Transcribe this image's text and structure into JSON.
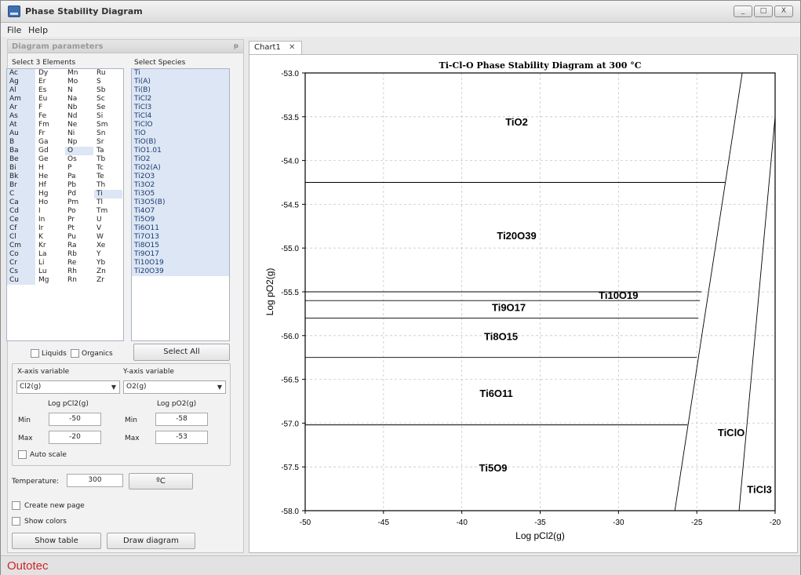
{
  "window": {
    "title": "Phase Stability Diagram",
    "min": "_",
    "max": "□",
    "close": "X"
  },
  "menu": [
    "File",
    "Help"
  ],
  "panel": {
    "title": "Diagram parameters",
    "pin": "ᵽ"
  },
  "labels": {
    "select_elements": "Select 3 Elements",
    "select_species": "Select Species",
    "liquids": "Liquids",
    "organics": "Organics",
    "select_all": "Select All",
    "x_axis": "X-axis variable",
    "y_axis": "Y-axis variable",
    "x_log": "Log pCl2(g)",
    "y_log": "Log pO2(g)",
    "min": "Min",
    "max": "Max",
    "auto_scale": "Auto scale",
    "temperature": "Temperature:",
    "temp_unit": "ºC",
    "create_new_page": "Create new page",
    "show_colors": "Show colors",
    "show_table": "Show table",
    "draw_diagram": "Draw diagram"
  },
  "elements": [
    [
      "Ac",
      "Dy",
      "Mn",
      "Ru"
    ],
    [
      "Ag",
      "Er",
      "Mo",
      "S"
    ],
    [
      "Al",
      "Es",
      "N",
      "Sb"
    ],
    [
      "Am",
      "Eu",
      "Na",
      "Sc"
    ],
    [
      "Ar",
      "F",
      "Nb",
      "Se"
    ],
    [
      "As",
      "Fe",
      "Nd",
      "Si"
    ],
    [
      "At",
      "Fm",
      "Ne",
      "Sm"
    ],
    [
      "Au",
      "Fr",
      "Ni",
      "Sn"
    ],
    [
      "B",
      "Ga",
      "Np",
      "Sr"
    ],
    [
      "Ba",
      "Gd",
      "O",
      "Ta"
    ],
    [
      "Be",
      "Ge",
      "Os",
      "Tb"
    ],
    [
      "Bi",
      "H",
      "P",
      "Tc"
    ],
    [
      "Bk",
      "He",
      "Pa",
      "Te"
    ],
    [
      "Br",
      "Hf",
      "Pb",
      "Th"
    ],
    [
      "C",
      "Hg",
      "Pd",
      "Ti"
    ],
    [
      "Ca",
      "Ho",
      "Pm",
      "Tl"
    ],
    [
      "Cd",
      "I",
      "Po",
      "Tm"
    ],
    [
      "Ce",
      "In",
      "Pr",
      "U"
    ],
    [
      "Cf",
      "Ir",
      "Pt",
      "V"
    ],
    [
      "Cl",
      "K",
      "Pu",
      "W"
    ],
    [
      "Cm",
      "Kr",
      "Ra",
      "Xe"
    ],
    [
      "Co",
      "La",
      "Rb",
      "Y"
    ],
    [
      "Cr",
      "Li",
      "Re",
      "Yb"
    ],
    [
      "Cs",
      "Lu",
      "Rh",
      "Zn"
    ],
    [
      "Cu",
      "Mg",
      "Rn",
      "Zr"
    ]
  ],
  "selected_elements": [
    "O",
    "Ti",
    "Cl"
  ],
  "species": [
    "Ti",
    "Ti(A)",
    "Ti(B)",
    "TiCl2",
    "TiCl3",
    "TiCl4",
    "TiClO",
    "TiO",
    "TiO(B)",
    "TiO1.01",
    "TiO2",
    "TiO2(A)",
    "Ti2O3",
    "Ti3O2",
    "Ti3O5",
    "Ti3O5(B)",
    "Ti4O7",
    "Ti5O9",
    "Ti6O11",
    "Ti7O13",
    "Ti8O15",
    "Ti9O17",
    "Ti10O19",
    "Ti20O39"
  ],
  "x_variable": "Cl2(g)",
  "y_variable": "O2(g)",
  "x_min": "-50",
  "x_max": "-20",
  "y_min": "-58",
  "y_max": "-53",
  "temperature": "300",
  "tab": {
    "label": "Chart1",
    "close": "✕"
  },
  "footer": {
    "logo": "Outotec"
  },
  "chart_data": {
    "type": "phase-diagram",
    "title": "Ti-Cl-O Phase Stability Diagram at 300 °C",
    "xlabel": "Log pCl2(g)",
    "ylabel": "Log pO2(g)",
    "xlim": [
      -50,
      -20
    ],
    "ylim": [
      -58,
      -53
    ],
    "xticks": [
      -50,
      -45,
      -40,
      -35,
      -30,
      -25,
      -20
    ],
    "yticks": [
      -58.0,
      -57.5,
      -57.0,
      -56.5,
      -56.0,
      -55.5,
      -55.0,
      -54.5,
      -54.0,
      -53.5,
      -53.0
    ],
    "ytick_labels": [
      "-58.0",
      "-57.5",
      "-57.0",
      "-56.5",
      "-56.0",
      "-55.5",
      "-55.0",
      "-54.5",
      "-54.0",
      "-53.5",
      "-53.0"
    ],
    "xtick_labels": [
      "-50",
      "-45",
      "-40",
      "-35",
      "-30",
      "-25",
      "-20"
    ],
    "boundaries": [
      {
        "from": [
          -50,
          -54.25
        ],
        "to": [
          -23.2,
          -54.25
        ]
      },
      {
        "from": [
          -50,
          -55.5
        ],
        "to": [
          -24.7,
          -55.5
        ]
      },
      {
        "from": [
          -50,
          -55.6
        ],
        "to": [
          -24.8,
          -55.6
        ]
      },
      {
        "from": [
          -50,
          -55.8
        ],
        "to": [
          -24.9,
          -55.8
        ]
      },
      {
        "from": [
          -50,
          -56.25
        ],
        "to": [
          -25.0,
          -56.25
        ]
      },
      {
        "from": [
          -50,
          -57.02
        ],
        "to": [
          -25.6,
          -57.02
        ]
      },
      {
        "from": [
          -26.4,
          -58
        ],
        "to": [
          -22.1,
          -53
        ]
      },
      {
        "from": [
          -22.3,
          -58
        ],
        "to": [
          -20,
          -53.5
        ]
      }
    ],
    "regions": [
      {
        "label": "TiO2",
        "x": -36.5,
        "y": -53.6
      },
      {
        "label": "Ti20O39",
        "x": -36.5,
        "y": -54.9
      },
      {
        "label": "Ti10O19",
        "x": -30.0,
        "y": -55.58
      },
      {
        "label": "Ti9O17",
        "x": -37.0,
        "y": -55.72
      },
      {
        "label": "Ti8O15",
        "x": -37.5,
        "y": -56.05
      },
      {
        "label": "Ti6O11",
        "x": -37.8,
        "y": -56.7
      },
      {
        "label": "TiClO",
        "x": -22.8,
        "y": -57.15
      },
      {
        "label": "Ti5O9",
        "x": -38.0,
        "y": -57.55
      },
      {
        "label": "TiCl3",
        "x": -21.0,
        "y": -57.8
      }
    ]
  }
}
